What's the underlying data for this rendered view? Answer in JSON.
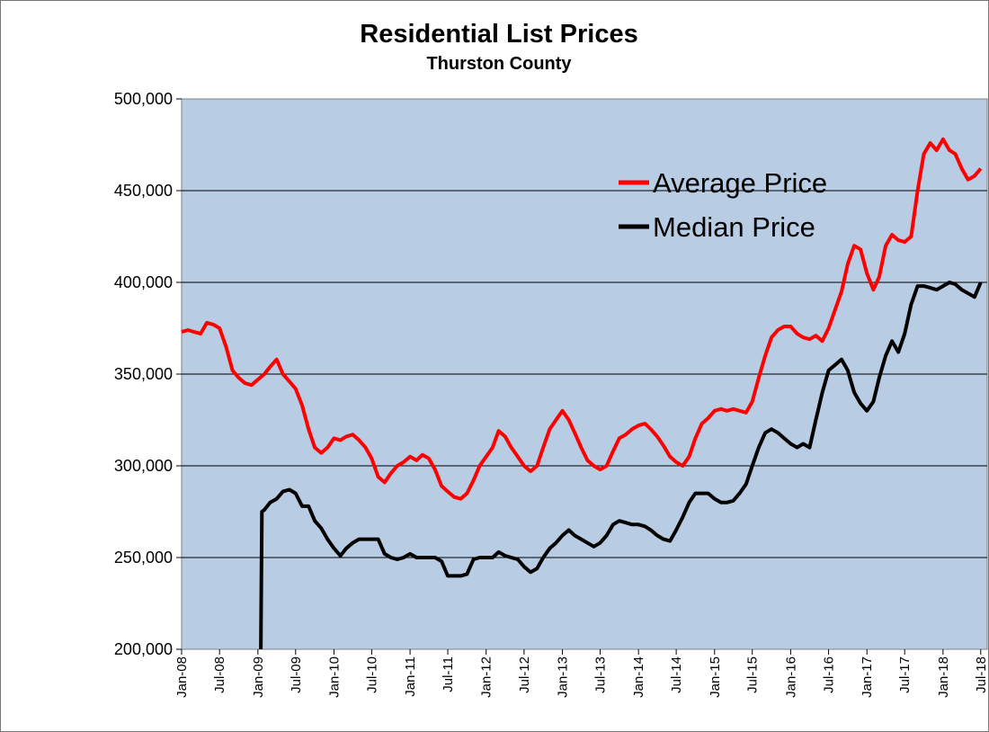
{
  "chart_data": {
    "type": "line",
    "title": "Residential List Prices",
    "subtitle": "Thurston County",
    "ylim": [
      200000,
      500000
    ],
    "y_ticks": [
      200000,
      250000,
      300000,
      350000,
      400000,
      450000,
      500000
    ],
    "y_tick_labels": [
      "200,000",
      "250,000",
      "300,000",
      "350,000",
      "400,000",
      "450,000",
      "500,000"
    ],
    "x_tick_labels": [
      "Jan-08",
      "Jul-08",
      "Jan-09",
      "Jul-09",
      "Jan-10",
      "Jul-10",
      "Jan-11",
      "Jul-11",
      "Jan-12",
      "Jul-12",
      "Jan-13",
      "Jul-13",
      "Jan-14",
      "Jul-14",
      "Jan-15",
      "Jul-15",
      "Jan-16",
      "Jul-16",
      "Jan-17",
      "Jul-17",
      "Jan-18",
      "Jul-18"
    ],
    "xlim": [
      "2008-01",
      "2018-08"
    ],
    "grid": "horizontal",
    "plot_background": "#B8CCE4",
    "legend_position": "inside upper-right",
    "series": [
      {
        "name": "Average Price",
        "color": "#FF0000",
        "points": [
          [
            "2008-01-01",
            373000
          ],
          [
            "2008-02-01",
            374000
          ],
          [
            "2008-03-01",
            373000
          ],
          [
            "2008-04-01",
            372000
          ],
          [
            "2008-05-01",
            378000
          ],
          [
            "2008-06-01",
            377000
          ],
          [
            "2008-07-01",
            375000
          ],
          [
            "2008-08-01",
            365000
          ],
          [
            "2008-09-01",
            352000
          ],
          [
            "2008-10-01",
            348000
          ],
          [
            "2008-11-01",
            345000
          ],
          [
            "2008-12-01",
            344000
          ],
          [
            "2009-01-01",
            347000
          ],
          [
            "2009-02-01",
            350000
          ],
          [
            "2009-03-01",
            354000
          ],
          [
            "2009-04-01",
            358000
          ],
          [
            "2009-05-01",
            350000
          ],
          [
            "2009-06-01",
            346000
          ],
          [
            "2009-07-01",
            342000
          ],
          [
            "2009-08-01",
            333000
          ],
          [
            "2009-09-01",
            320000
          ],
          [
            "2009-10-01",
            310000
          ],
          [
            "2009-11-01",
            307000
          ],
          [
            "2009-12-01",
            310000
          ],
          [
            "2010-01-01",
            315000
          ],
          [
            "2010-02-01",
            314000
          ],
          [
            "2010-03-01",
            316000
          ],
          [
            "2010-04-01",
            317000
          ],
          [
            "2010-05-01",
            314000
          ],
          [
            "2010-06-01",
            310000
          ],
          [
            "2010-07-01",
            304000
          ],
          [
            "2010-08-01",
            294000
          ],
          [
            "2010-09-01",
            291000
          ],
          [
            "2010-10-01",
            296000
          ],
          [
            "2010-11-01",
            300000
          ],
          [
            "2010-12-01",
            302000
          ],
          [
            "2011-01-01",
            305000
          ],
          [
            "2011-02-01",
            303000
          ],
          [
            "2011-03-01",
            306000
          ],
          [
            "2011-04-01",
            304000
          ],
          [
            "2011-05-01",
            298000
          ],
          [
            "2011-06-01",
            289000
          ],
          [
            "2011-07-01",
            286000
          ],
          [
            "2011-08-01",
            283000
          ],
          [
            "2011-09-01",
            282000
          ],
          [
            "2011-10-01",
            285000
          ],
          [
            "2011-11-01",
            292000
          ],
          [
            "2011-12-01",
            300000
          ],
          [
            "2012-01-01",
            305000
          ],
          [
            "2012-02-01",
            310000
          ],
          [
            "2012-03-01",
            319000
          ],
          [
            "2012-04-01",
            316000
          ],
          [
            "2012-05-01",
            310000
          ],
          [
            "2012-06-01",
            305000
          ],
          [
            "2012-07-01",
            300000
          ],
          [
            "2012-08-01",
            297000
          ],
          [
            "2012-09-01",
            300000
          ],
          [
            "2012-10-01",
            310000
          ],
          [
            "2012-11-01",
            320000
          ],
          [
            "2012-12-01",
            325000
          ],
          [
            "2013-01-01",
            330000
          ],
          [
            "2013-02-01",
            325000
          ],
          [
            "2013-03-01",
            318000
          ],
          [
            "2013-04-01",
            310000
          ],
          [
            "2013-05-01",
            303000
          ],
          [
            "2013-06-01",
            300000
          ],
          [
            "2013-07-01",
            298000
          ],
          [
            "2013-08-01",
            300000
          ],
          [
            "2013-09-01",
            308000
          ],
          [
            "2013-10-01",
            315000
          ],
          [
            "2013-11-01",
            317000
          ],
          [
            "2013-12-01",
            320000
          ],
          [
            "2014-01-01",
            322000
          ],
          [
            "2014-02-01",
            323000
          ],
          [
            "2014-03-01",
            320000
          ],
          [
            "2014-04-01",
            316000
          ],
          [
            "2014-05-01",
            311000
          ],
          [
            "2014-06-01",
            305000
          ],
          [
            "2014-07-01",
            302000
          ],
          [
            "2014-08-01",
            300000
          ],
          [
            "2014-09-01",
            305000
          ],
          [
            "2014-10-01",
            315000
          ],
          [
            "2014-11-01",
            323000
          ],
          [
            "2014-12-01",
            326000
          ],
          [
            "2015-01-01",
            330000
          ],
          [
            "2015-02-01",
            331000
          ],
          [
            "2015-03-01",
            330000
          ],
          [
            "2015-04-01",
            331000
          ],
          [
            "2015-05-01",
            330000
          ],
          [
            "2015-06-01",
            329000
          ],
          [
            "2015-07-01",
            335000
          ],
          [
            "2015-08-01",
            348000
          ],
          [
            "2015-09-01",
            360000
          ],
          [
            "2015-10-01",
            370000
          ],
          [
            "2015-11-01",
            374000
          ],
          [
            "2015-12-01",
            376000
          ],
          [
            "2016-01-01",
            376000
          ],
          [
            "2016-02-01",
            372000
          ],
          [
            "2016-03-01",
            370000
          ],
          [
            "2016-04-01",
            369000
          ],
          [
            "2016-05-01",
            371000
          ],
          [
            "2016-06-01",
            368000
          ],
          [
            "2016-07-01",
            375000
          ],
          [
            "2016-08-01",
            385000
          ],
          [
            "2016-09-01",
            395000
          ],
          [
            "2016-10-01",
            410000
          ],
          [
            "2016-11-01",
            420000
          ],
          [
            "2016-12-01",
            418000
          ],
          [
            "2017-01-01",
            405000
          ],
          [
            "2017-02-01",
            396000
          ],
          [
            "2017-03-01",
            403000
          ],
          [
            "2017-04-01",
            420000
          ],
          [
            "2017-05-01",
            426000
          ],
          [
            "2017-06-01",
            423000
          ],
          [
            "2017-07-01",
            422000
          ],
          [
            "2017-08-01",
            425000
          ],
          [
            "2017-09-01",
            450000
          ],
          [
            "2017-10-01",
            470000
          ],
          [
            "2017-11-01",
            476000
          ],
          [
            "2017-12-01",
            472000
          ],
          [
            "2018-01-01",
            478000
          ],
          [
            "2018-02-01",
            472000
          ],
          [
            "2018-03-01",
            470000
          ],
          [
            "2018-04-01",
            462000
          ],
          [
            "2018-05-01",
            456000
          ],
          [
            "2018-06-01",
            458000
          ],
          [
            "2018-07-01",
            462000
          ]
        ]
      },
      {
        "name": "Median Price",
        "color": "#000000",
        "points": [
          [
            "2009-01-15",
            200000
          ],
          [
            "2009-01-20",
            275000
          ],
          [
            "2009-02-01",
            276000
          ],
          [
            "2009-03-01",
            280000
          ],
          [
            "2009-04-01",
            282000
          ],
          [
            "2009-05-01",
            286000
          ],
          [
            "2009-06-01",
            287000
          ],
          [
            "2009-07-01",
            285000
          ],
          [
            "2009-08-01",
            278000
          ],
          [
            "2009-09-01",
            278000
          ],
          [
            "2009-10-01",
            270000
          ],
          [
            "2009-11-01",
            266000
          ],
          [
            "2009-12-01",
            260000
          ],
          [
            "2010-01-01",
            255000
          ],
          [
            "2010-02-01",
            251000
          ],
          [
            "2010-03-01",
            255000
          ],
          [
            "2010-04-01",
            258000
          ],
          [
            "2010-05-01",
            260000
          ],
          [
            "2010-06-01",
            260000
          ],
          [
            "2010-07-01",
            260000
          ],
          [
            "2010-08-01",
            260000
          ],
          [
            "2010-09-01",
            252000
          ],
          [
            "2010-10-01",
            250000
          ],
          [
            "2010-11-01",
            249000
          ],
          [
            "2010-12-01",
            250000
          ],
          [
            "2011-01-01",
            252000
          ],
          [
            "2011-02-01",
            250000
          ],
          [
            "2011-03-01",
            250000
          ],
          [
            "2011-04-01",
            250000
          ],
          [
            "2011-05-01",
            250000
          ],
          [
            "2011-06-01",
            248000
          ],
          [
            "2011-07-01",
            240000
          ],
          [
            "2011-08-01",
            240000
          ],
          [
            "2011-09-01",
            240000
          ],
          [
            "2011-10-01",
            241000
          ],
          [
            "2011-11-01",
            249000
          ],
          [
            "2011-12-01",
            250000
          ],
          [
            "2012-01-01",
            250000
          ],
          [
            "2012-02-01",
            250000
          ],
          [
            "2012-03-01",
            253000
          ],
          [
            "2012-04-01",
            251000
          ],
          [
            "2012-05-01",
            250000
          ],
          [
            "2012-06-01",
            249000
          ],
          [
            "2012-07-01",
            245000
          ],
          [
            "2012-08-01",
            242000
          ],
          [
            "2012-09-01",
            244000
          ],
          [
            "2012-10-01",
            250000
          ],
          [
            "2012-11-01",
            255000
          ],
          [
            "2012-12-01",
            258000
          ],
          [
            "2013-01-01",
            262000
          ],
          [
            "2013-02-01",
            265000
          ],
          [
            "2013-03-01",
            262000
          ],
          [
            "2013-04-01",
            260000
          ],
          [
            "2013-05-01",
            258000
          ],
          [
            "2013-06-01",
            256000
          ],
          [
            "2013-07-01",
            258000
          ],
          [
            "2013-08-01",
            262000
          ],
          [
            "2013-09-01",
            268000
          ],
          [
            "2013-10-01",
            270000
          ],
          [
            "2013-11-01",
            269000
          ],
          [
            "2013-12-01",
            268000
          ],
          [
            "2014-01-01",
            268000
          ],
          [
            "2014-02-01",
            267000
          ],
          [
            "2014-03-01",
            265000
          ],
          [
            "2014-04-01",
            262000
          ],
          [
            "2014-05-01",
            260000
          ],
          [
            "2014-06-01",
            259000
          ],
          [
            "2014-07-01",
            265000
          ],
          [
            "2014-08-01",
            272000
          ],
          [
            "2014-09-01",
            280000
          ],
          [
            "2014-10-01",
            285000
          ],
          [
            "2014-11-01",
            285000
          ],
          [
            "2014-12-01",
            285000
          ],
          [
            "2015-01-01",
            282000
          ],
          [
            "2015-02-01",
            280000
          ],
          [
            "2015-03-01",
            280000
          ],
          [
            "2015-04-01",
            281000
          ],
          [
            "2015-05-01",
            285000
          ],
          [
            "2015-06-01",
            290000
          ],
          [
            "2015-07-01",
            300000
          ],
          [
            "2015-08-01",
            310000
          ],
          [
            "2015-09-01",
            318000
          ],
          [
            "2015-10-01",
            320000
          ],
          [
            "2015-11-01",
            318000
          ],
          [
            "2015-12-01",
            315000
          ],
          [
            "2016-01-01",
            312000
          ],
          [
            "2016-02-01",
            310000
          ],
          [
            "2016-03-01",
            312000
          ],
          [
            "2016-04-01",
            310000
          ],
          [
            "2016-05-01",
            325000
          ],
          [
            "2016-06-01",
            340000
          ],
          [
            "2016-07-01",
            352000
          ],
          [
            "2016-08-01",
            355000
          ],
          [
            "2016-09-01",
            358000
          ],
          [
            "2016-10-01",
            352000
          ],
          [
            "2016-11-01",
            340000
          ],
          [
            "2016-12-01",
            334000
          ],
          [
            "2017-01-01",
            330000
          ],
          [
            "2017-02-01",
            335000
          ],
          [
            "2017-03-01",
            348000
          ],
          [
            "2017-04-01",
            360000
          ],
          [
            "2017-05-01",
            368000
          ],
          [
            "2017-06-01",
            362000
          ],
          [
            "2017-07-01",
            372000
          ],
          [
            "2017-08-01",
            388000
          ],
          [
            "2017-09-01",
            398000
          ],
          [
            "2017-10-01",
            398000
          ],
          [
            "2017-11-01",
            397000
          ],
          [
            "2017-12-01",
            396000
          ],
          [
            "2018-01-01",
            398000
          ],
          [
            "2018-02-01",
            400000
          ],
          [
            "2018-03-01",
            399000
          ],
          [
            "2018-04-01",
            396000
          ],
          [
            "2018-05-01",
            394000
          ],
          [
            "2018-06-01",
            392000
          ],
          [
            "2018-07-01",
            400000
          ]
        ]
      }
    ]
  }
}
